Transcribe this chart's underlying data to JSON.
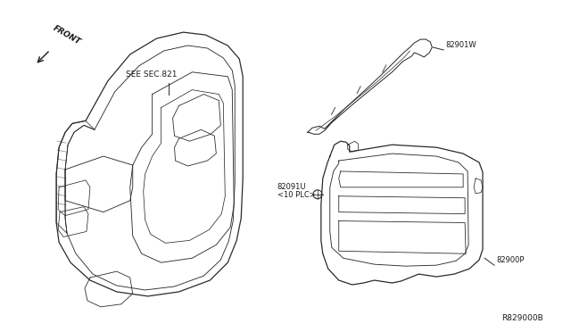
{
  "bg_color": "#ffffff",
  "line_color": "#2a2a2a",
  "text_color": "#1a1a1a",
  "part_number_bottom_right": "R829000B",
  "front_arrow_label": "FRONT",
  "labels": {
    "see_sec821": "SEE SEC.821",
    "82901w": "82901W",
    "82091u": "82091U",
    "10plc": "<10 PLC>",
    "82900p": "82900P"
  },
  "font_size_small": 6.5,
  "font_size_label": 6.0,
  "font_size_part": 6.5
}
